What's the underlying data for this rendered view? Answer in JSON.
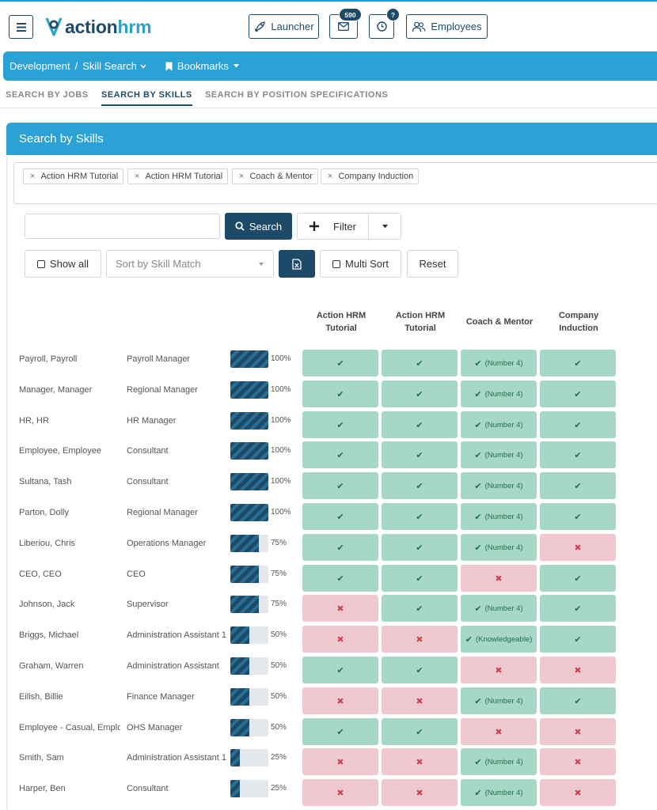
{
  "app": {
    "logo_part1": "action",
    "logo_part2": "hrm",
    "launcher_label": "Launcher",
    "mail_count": "590",
    "help_badge": "?",
    "employees_label": "Employees"
  },
  "breadcrumb": {
    "root": "Development",
    "separator": "/",
    "current": "Skill Search",
    "bookmarks": "Bookmarks"
  },
  "tabs": [
    {
      "label": "SEARCH BY JOBS",
      "active": false
    },
    {
      "label": "SEARCH BY SKILLS",
      "active": true
    },
    {
      "label": "SEARCH BY POSITION SPECIFICATIONS",
      "active": false
    }
  ],
  "panel": {
    "title": "Search by Skills"
  },
  "selected_skills": [
    "Action HRM Tutorial",
    "Action HRM Tutorial",
    "Coach & Mentor",
    "Company Induction"
  ],
  "search": {
    "value": "",
    "button": "Search",
    "filter": "Filter"
  },
  "options": {
    "show_all": "Show all",
    "sort_placeholder": "Sort by Skill Match",
    "multi_sort": "Multi Sort",
    "reset": "Reset"
  },
  "columns": [
    "Action HRM Tutorial",
    "Action HRM Tutorial",
    "Coach & Mentor",
    "Company Induction"
  ],
  "colors": {
    "primary": "#1e4a6a",
    "accent": "#2ba1d6",
    "match": "#a6d8c5",
    "nomatch": "#f0c8cf"
  },
  "rows": [
    {
      "name": "Payroll, Payroll",
      "position": "Payroll Manager",
      "match": 100,
      "match_label": "100%",
      "cells": [
        {
          "ok": true,
          "note": ""
        },
        {
          "ok": true,
          "note": ""
        },
        {
          "ok": true,
          "note": "(Number 4)"
        },
        {
          "ok": true,
          "note": ""
        }
      ]
    },
    {
      "name": "Manager, Manager",
      "position": "Regional Manager",
      "match": 100,
      "match_label": "100%",
      "cells": [
        {
          "ok": true,
          "note": ""
        },
        {
          "ok": true,
          "note": ""
        },
        {
          "ok": true,
          "note": "(Number 4)"
        },
        {
          "ok": true,
          "note": ""
        }
      ]
    },
    {
      "name": "HR, HR",
      "position": "HR Manager",
      "match": 100,
      "match_label": "100%",
      "cells": [
        {
          "ok": true,
          "note": ""
        },
        {
          "ok": true,
          "note": ""
        },
        {
          "ok": true,
          "note": "(Number 4)"
        },
        {
          "ok": true,
          "note": ""
        }
      ]
    },
    {
      "name": "Employee, Employee",
      "position": "Consultant",
      "match": 100,
      "match_label": "100%",
      "cells": [
        {
          "ok": true,
          "note": ""
        },
        {
          "ok": true,
          "note": ""
        },
        {
          "ok": true,
          "note": "(Number 4)"
        },
        {
          "ok": true,
          "note": ""
        }
      ]
    },
    {
      "name": "Sultana, Tash",
      "position": "Consultant",
      "match": 100,
      "match_label": "100%",
      "cells": [
        {
          "ok": true,
          "note": ""
        },
        {
          "ok": true,
          "note": ""
        },
        {
          "ok": true,
          "note": "(Number 4)"
        },
        {
          "ok": true,
          "note": ""
        }
      ]
    },
    {
      "name": "Parton, Dolly",
      "position": "Regional Manager",
      "match": 100,
      "match_label": "100%",
      "cells": [
        {
          "ok": true,
          "note": ""
        },
        {
          "ok": true,
          "note": ""
        },
        {
          "ok": true,
          "note": "(Number 4)"
        },
        {
          "ok": true,
          "note": ""
        }
      ]
    },
    {
      "name": "Liberiou, Chris",
      "position": "Operations Manager",
      "match": 75,
      "match_label": "75%",
      "cells": [
        {
          "ok": true,
          "note": ""
        },
        {
          "ok": true,
          "note": ""
        },
        {
          "ok": true,
          "note": "(Number 4)"
        },
        {
          "ok": false,
          "note": ""
        }
      ]
    },
    {
      "name": "CEO, CEO",
      "position": "CEO",
      "match": 75,
      "match_label": "75%",
      "cells": [
        {
          "ok": true,
          "note": ""
        },
        {
          "ok": true,
          "note": ""
        },
        {
          "ok": false,
          "note": ""
        },
        {
          "ok": true,
          "note": ""
        }
      ]
    },
    {
      "name": "Johnson, Jack",
      "position": "Supervisor",
      "match": 75,
      "match_label": "75%",
      "cells": [
        {
          "ok": false,
          "note": ""
        },
        {
          "ok": true,
          "note": ""
        },
        {
          "ok": true,
          "note": "(Number 4)"
        },
        {
          "ok": true,
          "note": ""
        }
      ]
    },
    {
      "name": "Briggs, Michael",
      "position": "Administration Assistant 1",
      "match": 50,
      "match_label": "50%",
      "cells": [
        {
          "ok": false,
          "note": ""
        },
        {
          "ok": false,
          "note": ""
        },
        {
          "ok": true,
          "note": "(Knowledgeable)"
        },
        {
          "ok": true,
          "note": ""
        }
      ]
    },
    {
      "name": "Graham, Warren",
      "position": "Administration Assistant",
      "match": 50,
      "match_label": "50%",
      "cells": [
        {
          "ok": true,
          "note": ""
        },
        {
          "ok": true,
          "note": ""
        },
        {
          "ok": false,
          "note": ""
        },
        {
          "ok": false,
          "note": ""
        }
      ]
    },
    {
      "name": "Eilish, Billie",
      "position": "Finance Manager",
      "match": 50,
      "match_label": "50%",
      "cells": [
        {
          "ok": false,
          "note": ""
        },
        {
          "ok": false,
          "note": ""
        },
        {
          "ok": true,
          "note": "(Number 4)"
        },
        {
          "ok": true,
          "note": ""
        }
      ]
    },
    {
      "name": "Employee - Casual, Employ",
      "position": "OHS Manager",
      "match": 50,
      "match_label": "50%",
      "cells": [
        {
          "ok": true,
          "note": ""
        },
        {
          "ok": true,
          "note": ""
        },
        {
          "ok": false,
          "note": ""
        },
        {
          "ok": false,
          "note": ""
        }
      ]
    },
    {
      "name": "Smith, Sam",
      "position": "Administration Assistant 1",
      "match": 25,
      "match_label": "25%",
      "cells": [
        {
          "ok": false,
          "note": ""
        },
        {
          "ok": false,
          "note": ""
        },
        {
          "ok": true,
          "note": "(Number 4)"
        },
        {
          "ok": false,
          "note": ""
        }
      ]
    },
    {
      "name": "Harper, Ben",
      "position": "Consultant",
      "match": 25,
      "match_label": "25%",
      "cells": [
        {
          "ok": false,
          "note": ""
        },
        {
          "ok": false,
          "note": ""
        },
        {
          "ok": true,
          "note": "(Number 4)"
        },
        {
          "ok": false,
          "note": ""
        }
      ]
    }
  ]
}
